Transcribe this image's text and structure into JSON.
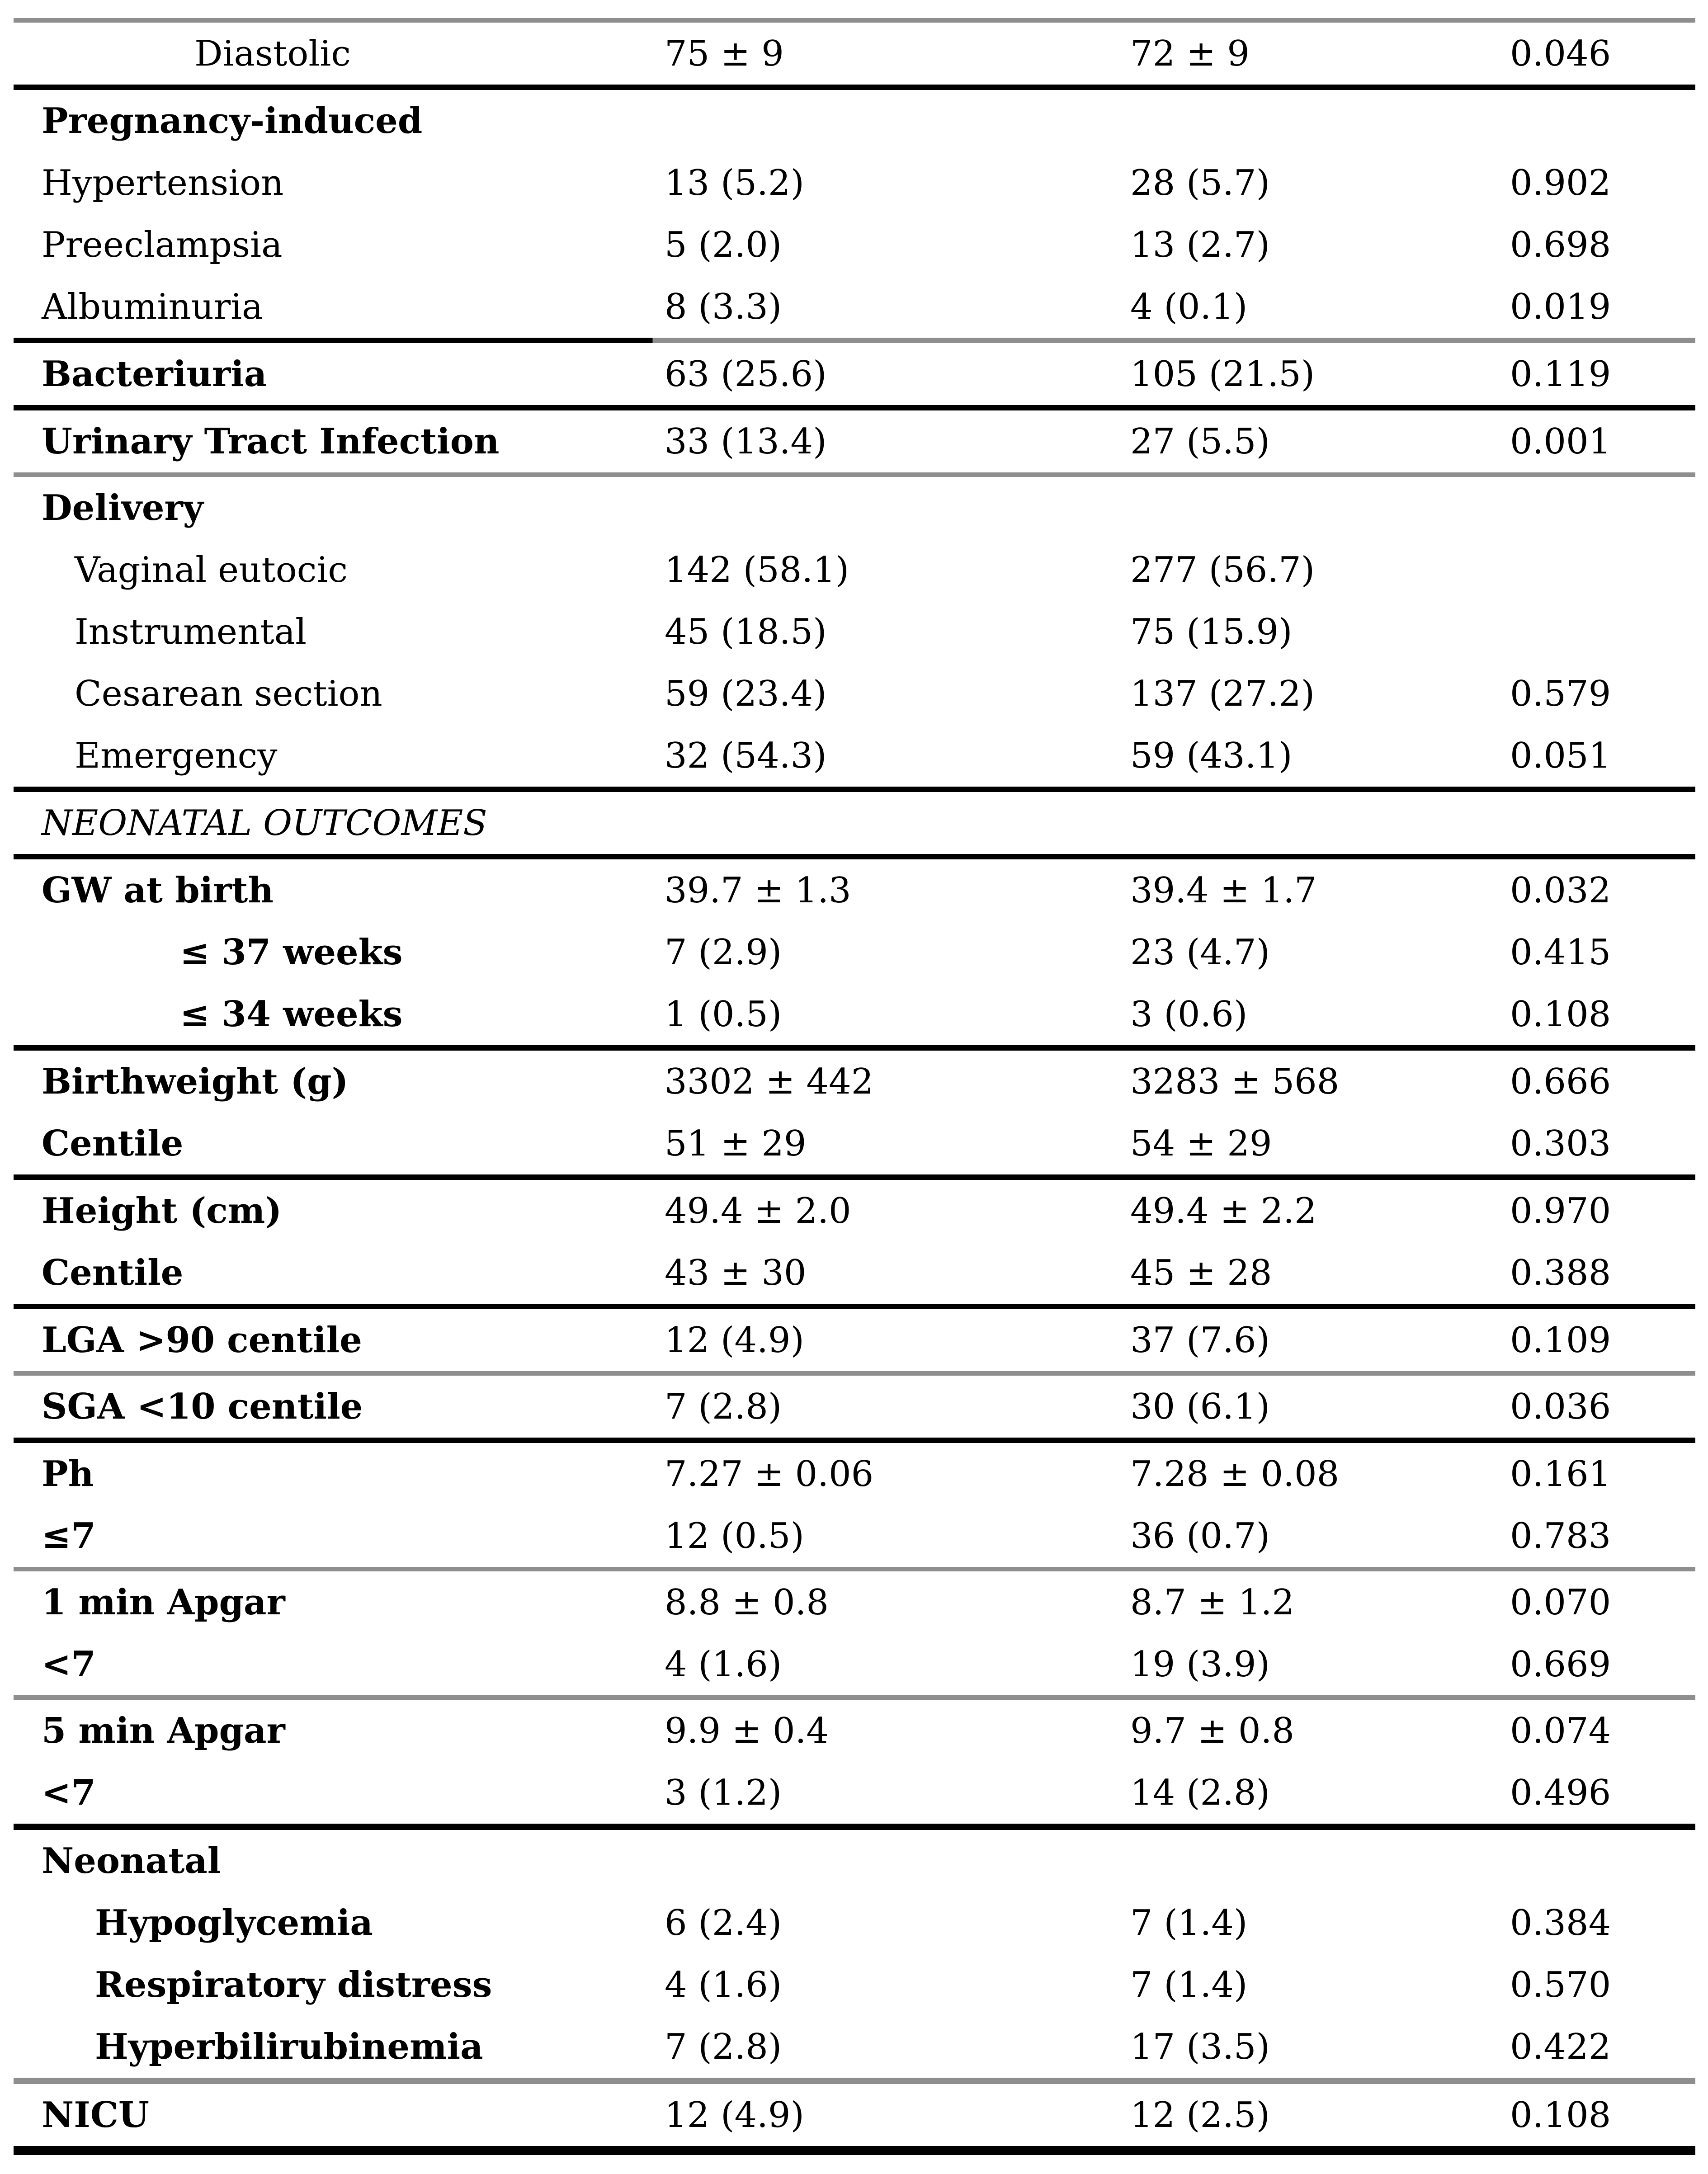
{
  "colors": {
    "text": "#000000",
    "background": "#ffffff",
    "rule_dark": "#000000",
    "rule_gray": "#8e8e8e"
  },
  "table": {
    "description": "continued outcomes table: characteristic, group 1 value, group 2 value, p-value",
    "rows": [
      {
        "type": "rule",
        "color": "gray",
        "weight": 10
      },
      {
        "type": "row",
        "label": "Diastolic",
        "indent": 3,
        "bold": false,
        "italic": false,
        "c1": "75 ± 9",
        "c2": "72 ± 9",
        "p": "0.046"
      },
      {
        "type": "rule",
        "color": "black",
        "weight": 12
      },
      {
        "type": "row",
        "label": "Pregnancy-induced",
        "indent": 0,
        "bold": true,
        "italic": false,
        "c1": "",
        "c2": "",
        "p": ""
      },
      {
        "type": "row",
        "label": "Hypertension",
        "indent": 0,
        "bold": false,
        "italic": false,
        "c1": "13 (5.2)",
        "c2": "28 (5.7)",
        "p": "0.902"
      },
      {
        "type": "row",
        "label": "Preeclampsia",
        "indent": 0,
        "bold": false,
        "italic": false,
        "c1": "5 (2.0)",
        "c2": "13 (2.7)",
        "p": "0.698"
      },
      {
        "type": "row",
        "label": "Albuminuria",
        "indent": 0,
        "bold": false,
        "italic": false,
        "c1": "8 (3.3)",
        "c2": "4 (0.1)",
        "p": "0.019"
      },
      {
        "type": "rule",
        "color": "mixed",
        "weight": 12
      },
      {
        "type": "row",
        "label": "Bacteriuria",
        "indent": 0,
        "bold": true,
        "italic": false,
        "c1": "63 (25.6)",
        "c2": "105 (21.5)",
        "p": "0.119"
      },
      {
        "type": "rule",
        "color": "black",
        "weight": 12
      },
      {
        "type": "row",
        "label": "Urinary Tract Infection",
        "indent": 0,
        "bold": true,
        "italic": false,
        "c1": "33 (13.4)",
        "c2": "27 (5.5)",
        "p": "0.001"
      },
      {
        "type": "rule",
        "color": "gray",
        "weight": 10
      },
      {
        "type": "row",
        "label": "Delivery",
        "indent": 0,
        "bold": true,
        "italic": false,
        "c1": "",
        "c2": "",
        "p": ""
      },
      {
        "type": "row",
        "label": "Vaginal eutocic",
        "indent": 1,
        "bold": false,
        "italic": false,
        "c1": "142 (58.1)",
        "c2": "277 (56.7)",
        "p": ""
      },
      {
        "type": "row",
        "label": "Instrumental",
        "indent": 1,
        "bold": false,
        "italic": false,
        "c1": "45 (18.5)",
        "c2": "75 (15.9)",
        "p": ""
      },
      {
        "type": "row",
        "label": "Cesarean section",
        "indent": 1,
        "bold": false,
        "italic": false,
        "c1": "59 (23.4)",
        "c2": "137 (27.2)",
        "p": "0.579"
      },
      {
        "type": "row",
        "label": "Emergency",
        "indent": 1,
        "bold": false,
        "italic": false,
        "c1": "32 (54.3)",
        "c2": "59 (43.1)",
        "p": "0.051"
      },
      {
        "type": "rule",
        "color": "black",
        "weight": 12
      },
      {
        "type": "row",
        "label": "NEONATAL OUTCOMES",
        "indent": 0,
        "bold": false,
        "italic": true,
        "c1": "",
        "c2": "",
        "p": ""
      },
      {
        "type": "rule",
        "color": "black",
        "weight": 12
      },
      {
        "type": "row",
        "label": "GW at birth",
        "indent": 0,
        "bold": true,
        "italic": false,
        "c1": "39.7 ± 1.3",
        "c2": "39.4 ± 1.7",
        "p": "0.032"
      },
      {
        "type": "row",
        "label": "≤ 37 weeks",
        "indent": 4,
        "bold": true,
        "italic": false,
        "c1": "7 (2.9)",
        "c2": "23 (4.7)",
        "p": "0.415"
      },
      {
        "type": "row",
        "label": "≤ 34 weeks",
        "indent": 4,
        "bold": true,
        "italic": false,
        "c1": "1 (0.5)",
        "c2": "3 (0.6)",
        "p": "0.108"
      },
      {
        "type": "rule",
        "color": "black",
        "weight": 12
      },
      {
        "type": "row",
        "label": "Birthweight (g)",
        "indent": 0,
        "bold": true,
        "italic": false,
        "c1": "3302 ± 442",
        "c2": "3283 ± 568",
        "p": "0.666"
      },
      {
        "type": "row",
        "label": "Centile",
        "indent": 0,
        "bold": true,
        "italic": false,
        "c1": "51 ± 29",
        "c2": "54 ± 29",
        "p": "0.303"
      },
      {
        "type": "rule",
        "color": "black",
        "weight": 12
      },
      {
        "type": "row",
        "label": "Height (cm)",
        "indent": 0,
        "bold": true,
        "italic": false,
        "c1": "49.4 ± 2.0",
        "c2": "49.4 ± 2.2",
        "p": "0.970"
      },
      {
        "type": "row",
        "label": "Centile",
        "indent": 0,
        "bold": true,
        "italic": false,
        "c1": "43 ± 30",
        "c2": "45 ± 28",
        "p": "0.388"
      },
      {
        "type": "rule",
        "color": "black",
        "weight": 12
      },
      {
        "type": "row",
        "label": "LGA >90 centile",
        "indent": 0,
        "bold": true,
        "italic": false,
        "c1": "12 (4.9)",
        "c2": "37 (7.6)",
        "p": "0.109"
      },
      {
        "type": "rule",
        "color": "gray",
        "weight": 10
      },
      {
        "type": "row",
        "label": "SGA <10 centile",
        "indent": 0,
        "bold": true,
        "italic": false,
        "c1": "7 (2.8)",
        "c2": "30 (6.1)",
        "p": "0.036"
      },
      {
        "type": "rule",
        "color": "black",
        "weight": 12
      },
      {
        "type": "row",
        "label": "Ph",
        "indent": 0,
        "bold": true,
        "italic": false,
        "c1": "7.27 ± 0.06",
        "c2": "7.28 ± 0.08",
        "p": "0.161"
      },
      {
        "type": "row",
        "label": "≤7",
        "indent": 0,
        "bold": true,
        "italic": false,
        "c1": "12 (0.5)",
        "c2": "36 (0.7)",
        "p": "0.783"
      },
      {
        "type": "rule",
        "color": "gray",
        "weight": 10
      },
      {
        "type": "row",
        "label": "1 min Apgar",
        "indent": 0,
        "bold": true,
        "italic": false,
        "c1": "8.8 ± 0.8",
        "c2": "8.7 ± 1.2",
        "p": "0.070"
      },
      {
        "type": "row",
        "label": "<7",
        "indent": 0,
        "bold": true,
        "italic": false,
        "c1": "4 (1.6)",
        "c2": "19 (3.9)",
        "p": "0.669"
      },
      {
        "type": "rule",
        "color": "gray",
        "weight": 10
      },
      {
        "type": "row",
        "label": "5 min Apgar",
        "indent": 0,
        "bold": true,
        "italic": false,
        "c1": "9.9 ± 0.4",
        "c2": "9.7 ± 0.8",
        "p": "0.074"
      },
      {
        "type": "row",
        "label": "<7",
        "indent": 0,
        "bold": true,
        "italic": false,
        "c1": "3 (1.2)",
        "c2": "14 (2.8)",
        "p": "0.496"
      },
      {
        "type": "rule",
        "color": "black",
        "weight": 14
      },
      {
        "type": "row",
        "label": "Neonatal",
        "indent": 0,
        "bold": true,
        "italic": false,
        "c1": "",
        "c2": "",
        "p": ""
      },
      {
        "type": "row",
        "label": "Hypoglycemia",
        "indent": 2,
        "bold": true,
        "italic": false,
        "c1": "6 (2.4)",
        "c2": "7 (1.4)",
        "p": "0.384"
      },
      {
        "type": "row",
        "label": "Respiratory distress",
        "indent": 2,
        "bold": true,
        "italic": false,
        "c1": "4 (1.6)",
        "c2": "7 (1.4)",
        "p": "0.570"
      },
      {
        "type": "row",
        "label": "Hyperbilirubinemia",
        "indent": 2,
        "bold": true,
        "italic": false,
        "c1": "7 (2.8)",
        "c2": "17 (3.5)",
        "p": "0.422"
      },
      {
        "type": "rule",
        "color": "gray",
        "weight": 14
      },
      {
        "type": "row",
        "label": "NICU",
        "indent": 0,
        "bold": true,
        "italic": false,
        "c1": "12 (4.9)",
        "c2": "12 (2.5)",
        "p": "0.108"
      },
      {
        "type": "rule",
        "color": "black",
        "weight": 20
      }
    ]
  }
}
